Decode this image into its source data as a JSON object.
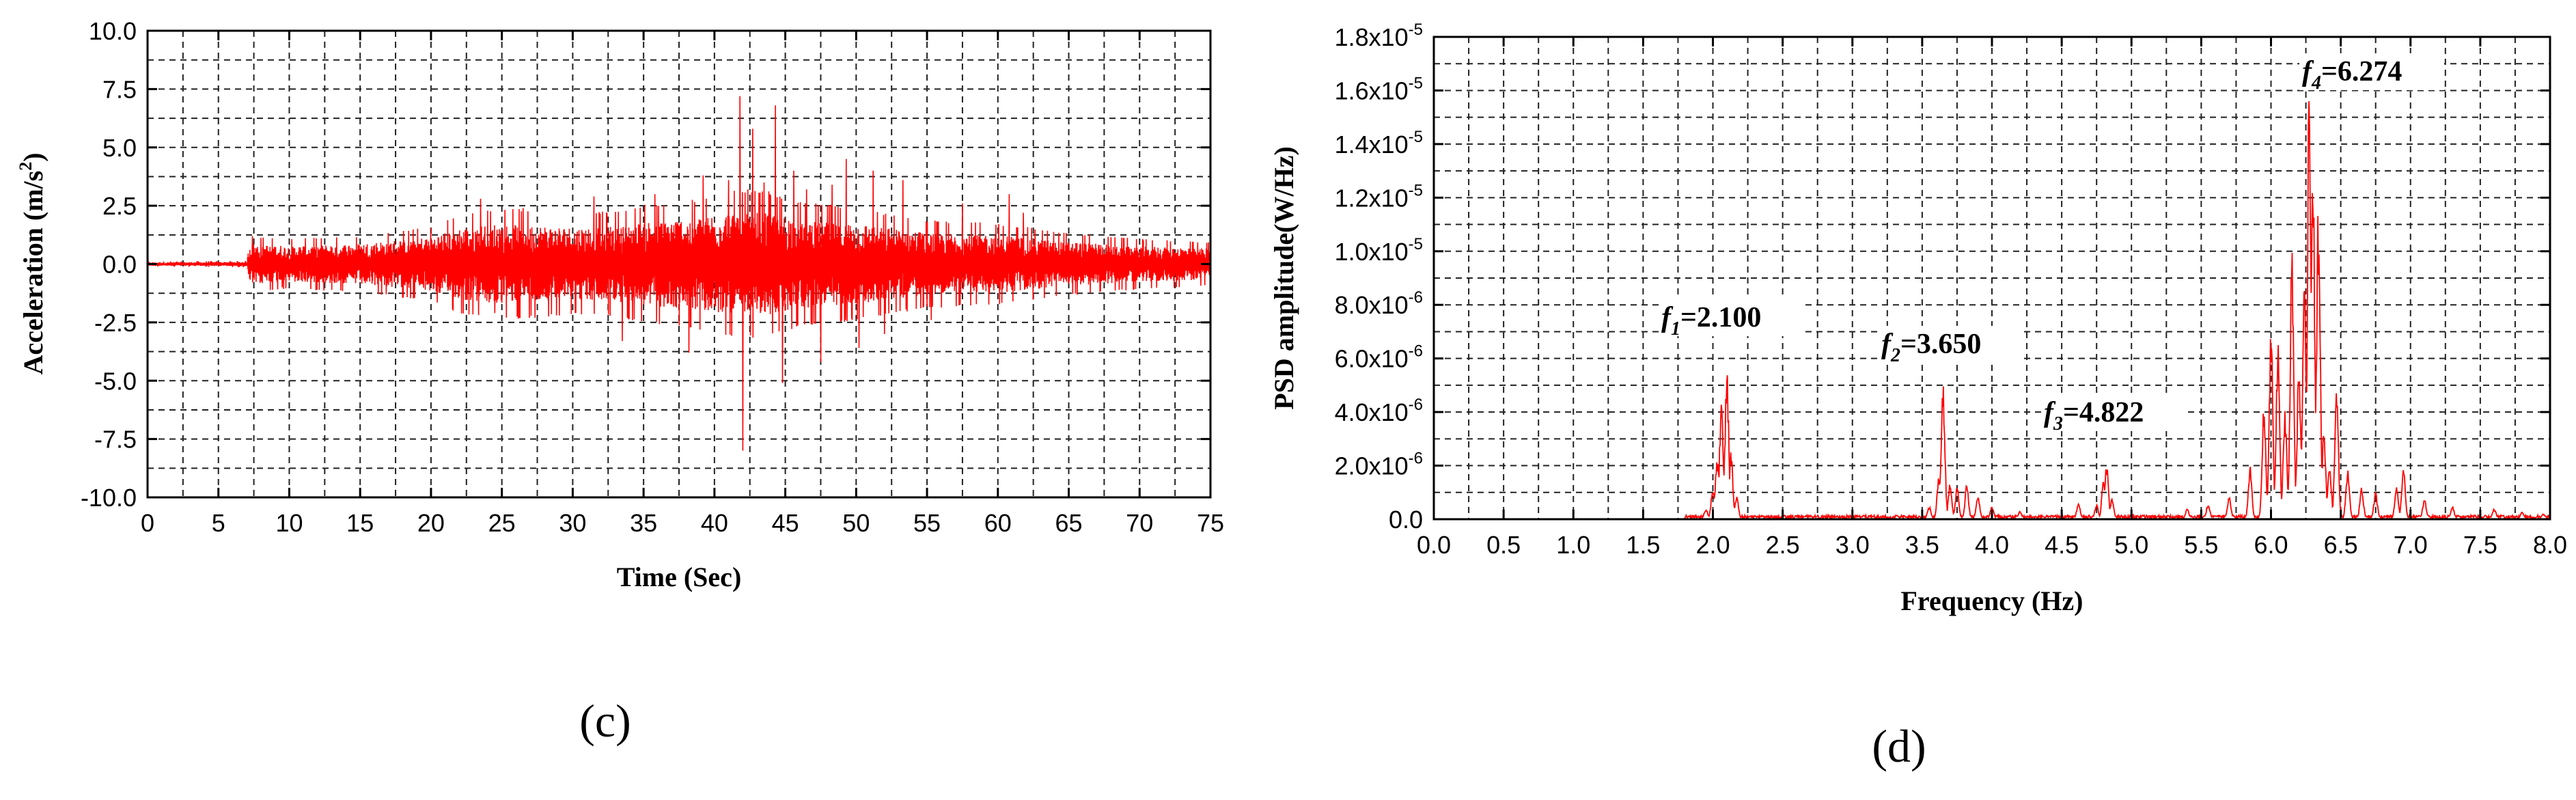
{
  "chart_data": [
    {
      "type": "line",
      "panel_label": "(c)",
      "xlabel": "Time (Sec)",
      "ylabel": "Acceleration (m/s",
      "ylabel_sup": "2",
      "ylabel_close": ")",
      "xlim": [
        0,
        75
      ],
      "ylim": [
        -10,
        10
      ],
      "xticks": [
        0,
        5,
        10,
        15,
        20,
        25,
        30,
        35,
        40,
        45,
        50,
        55,
        60,
        65,
        70,
        75
      ],
      "yticks": [
        -10.0,
        -7.5,
        -5.0,
        -2.5,
        0.0,
        2.5,
        5.0,
        7.5,
        10.0
      ],
      "yticklabels": [
        "-10.0",
        "-7.5",
        "-5.0",
        "-2.5",
        "0.0",
        "2.5",
        "5.0",
        "7.5",
        "10.0"
      ],
      "grid": true,
      "line_color": "#ff0000",
      "series": [
        {
          "t": [
            0,
            7,
            7.2,
            10,
            15,
            20,
            22,
            25,
            30,
            33,
            35,
            38,
            40,
            42,
            44,
            46,
            48,
            50,
            55,
            60,
            65,
            70,
            75
          ],
          "envelope": [
            0.08,
            0.1,
            0.9,
            0.8,
            0.9,
            1.2,
            1.6,
            1.8,
            1.6,
            1.7,
            1.9,
            2.0,
            2.2,
            2.4,
            2.3,
            2.0,
            1.9,
            1.8,
            1.4,
            1.3,
            1.0,
            0.8,
            0.7
          ],
          "spikes": [
            [
              7.4,
              1.2
            ],
            [
              9.5,
              -1.0
            ],
            [
              23.5,
              2.8
            ],
            [
              24.5,
              -2.1
            ],
            [
              26.5,
              2.4
            ],
            [
              31.5,
              2.9
            ],
            [
              33.5,
              -3.3
            ],
            [
              35.8,
              3.0
            ],
            [
              38.2,
              -3.8
            ],
            [
              39.2,
              3.8
            ],
            [
              41.0,
              3.6
            ],
            [
              41.8,
              7.2
            ],
            [
              42.0,
              -8.0
            ],
            [
              42.7,
              5.8
            ],
            [
              43.5,
              3.5
            ],
            [
              44.3,
              6.8
            ],
            [
              44.8,
              -5.1
            ],
            [
              45.6,
              4.0
            ],
            [
              46.5,
              3.2
            ],
            [
              47.5,
              -4.2
            ],
            [
              48.3,
              3.4
            ],
            [
              49.3,
              4.5
            ],
            [
              50.2,
              -3.6
            ],
            [
              51.2,
              4.0
            ],
            [
              52.0,
              -3.0
            ],
            [
              53.3,
              3.6
            ],
            [
              55.3,
              -2.4
            ],
            [
              57.5,
              2.6
            ],
            [
              60.8,
              3.0
            ],
            [
              61.8,
              2.2
            ]
          ]
        }
      ]
    },
    {
      "type": "line",
      "panel_label": "(d)",
      "xlabel": "Frequency (Hz)",
      "ylabel": "PSD amplitude(W/Hz)",
      "xlim": [
        0,
        8
      ],
      "ylim": [
        0,
        1.8e-05
      ],
      "xticks": [
        0.0,
        0.5,
        1.0,
        1.5,
        2.0,
        2.5,
        3.0,
        3.5,
        4.0,
        4.5,
        5.0,
        5.5,
        6.0,
        6.5,
        7.0,
        7.5,
        8.0
      ],
      "xticklabels": [
        "0.0",
        "0.5",
        "1.0",
        "1.5",
        "2.0",
        "2.5",
        "3.0",
        "3.5",
        "4.0",
        "4.5",
        "5.0",
        "5.5",
        "6.0",
        "6.5",
        "7.0",
        "7.5",
        "8.0"
      ],
      "yticks": [
        0,
        2e-06,
        4e-06,
        6e-06,
        8e-06,
        1e-05,
        1.2e-05,
        1.4e-05,
        1.6e-05,
        1.8e-05
      ],
      "yticklabels": [
        {
          "m": "0.0",
          "e": ""
        },
        {
          "m": "2.0x10",
          "e": "-6"
        },
        {
          "m": "4.0x10",
          "e": "-6"
        },
        {
          "m": "6.0x10",
          "e": "-6"
        },
        {
          "m": "8.0x10",
          "e": "-6"
        },
        {
          "m": "1.0x10",
          "e": "-5"
        },
        {
          "m": "1.2x10",
          "e": "-5"
        },
        {
          "m": "1.4x10",
          "e": "-5"
        },
        {
          "m": "1.6x10",
          "e": "-5"
        },
        {
          "m": "1.8x10",
          "e": "-5"
        }
      ],
      "grid": true,
      "line_color": "#ff0000",
      "series": [
        {
          "peaks": [
            [
              1.95,
              4e-07
            ],
            [
              2.0,
              1.2e-06
            ],
            [
              2.03,
              2.4e-06
            ],
            [
              2.06,
              4.5e-06
            ],
            [
              2.1,
              5.8e-06
            ],
            [
              2.13,
              2.6e-06
            ],
            [
              2.17,
              9e-07
            ],
            [
              3.55,
              5e-07
            ],
            [
              3.62,
              1.8e-06
            ],
            [
              3.65,
              5.1e-06
            ],
            [
              3.7,
              1.4e-06
            ],
            [
              3.75,
              1.2e-06
            ],
            [
              3.82,
              1.3e-06
            ],
            [
              3.9,
              9e-07
            ],
            [
              4.0,
              5e-07
            ],
            [
              4.2,
              3e-07
            ],
            [
              4.62,
              6e-07
            ],
            [
              4.75,
              6e-07
            ],
            [
              4.8,
              1.5e-06
            ],
            [
              4.822,
              2.1e-06
            ],
            [
              4.86,
              8e-07
            ],
            [
              5.4,
              4e-07
            ],
            [
              5.55,
              6e-07
            ],
            [
              5.7,
              9e-07
            ],
            [
              5.85,
              2e-06
            ],
            [
              5.95,
              4.5e-06
            ],
            [
              6.0,
              7.5e-06
            ],
            [
              6.05,
              6.8e-06
            ],
            [
              6.1,
              4.2e-06
            ],
            [
              6.15,
              1.02e-05
            ],
            [
              6.2,
              6e-06
            ],
            [
              6.24,
              9e-06
            ],
            [
              6.274,
              1.66e-05
            ],
            [
              6.3,
              1.45e-05
            ],
            [
              6.34,
              1.2e-05
            ],
            [
              6.38,
              3.5e-06
            ],
            [
              6.42,
              2e-06
            ],
            [
              6.47,
              5e-06
            ],
            [
              6.55,
              2e-06
            ],
            [
              6.65,
              1.2e-06
            ],
            [
              6.75,
              1e-06
            ],
            [
              6.9,
              1.3e-06
            ],
            [
              6.95,
              2e-06
            ],
            [
              7.1,
              8e-07
            ],
            [
              7.3,
              5e-07
            ],
            [
              7.6,
              4e-07
            ],
            [
              7.8,
              3e-07
            ],
            [
              7.95,
              2e-07
            ]
          ]
        }
      ],
      "annotations": [
        {
          "base": "f",
          "sub": "1",
          "text": "=2.100",
          "x": 2.1
        },
        {
          "base": "f",
          "sub": "2",
          "text": "=3.650",
          "x": 3.65
        },
        {
          "base": "f",
          "sub": "3",
          "text": "=4.822",
          "x": 4.822
        },
        {
          "base": "f",
          "sub": "4",
          "text": "=6.274",
          "x": 6.274
        }
      ]
    }
  ]
}
